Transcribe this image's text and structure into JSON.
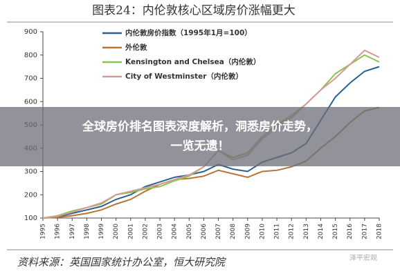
{
  "chart_data": {
    "type": "line",
    "title": "图表24：内伦敦核心区域房价涨幅更大",
    "x": [
      1995,
      1996,
      1997,
      1998,
      1999,
      2000,
      2001,
      2002,
      2003,
      2004,
      2005,
      2006,
      2007,
      2008,
      2009,
      2010,
      2011,
      2012,
      2013,
      2014,
      2015,
      2016,
      2017,
      2018
    ],
    "xlim": [
      1995,
      2018
    ],
    "xticks": [
      1995,
      1996,
      1997,
      1998,
      1999,
      2000,
      2001,
      2002,
      2003,
      2004,
      2005,
      2006,
      2007,
      2008,
      2009,
      2010,
      2011,
      2012,
      2013,
      2014,
      2015,
      2016,
      2017,
      2018
    ],
    "ylim": [
      100,
      900
    ],
    "yticks": [
      100,
      200,
      300,
      400,
      500,
      600,
      700,
      800,
      900
    ],
    "series": [
      {
        "name": "内伦敦房价指数（1995年1月=100）",
        "color": "#2b5f8f",
        "values": [
          100,
          105,
          120,
          135,
          150,
          180,
          200,
          235,
          255,
          275,
          285,
          300,
          330,
          310,
          300,
          340,
          360,
          380,
          420,
          520,
          620,
          680,
          730,
          750
        ]
      },
      {
        "name": "外伦敦",
        "color": "#b87333",
        "values": [
          100,
          103,
          110,
          120,
          135,
          160,
          180,
          215,
          245,
          265,
          270,
          280,
          305,
          290,
          275,
          300,
          305,
          320,
          345,
          400,
          450,
          510,
          560,
          575
        ]
      },
      {
        "name": "Kensington and Chelsea（内伦敦）",
        "color": "#8bc34a",
        "values": [
          100,
          110,
          130,
          145,
          160,
          200,
          210,
          225,
          235,
          260,
          280,
          320,
          390,
          360,
          380,
          450,
          500,
          540,
          590,
          650,
          720,
          760,
          800,
          770
        ]
      },
      {
        "name": "City of Westminster（内伦敦）",
        "color": "#d49a9a",
        "values": [
          100,
          108,
          125,
          145,
          165,
          200,
          215,
          230,
          245,
          265,
          285,
          320,
          390,
          350,
          370,
          440,
          490,
          530,
          590,
          650,
          700,
          760,
          820,
          790
        ]
      }
    ],
    "source": "资料来源：英国国家统计办公室，恒大研究院",
    "watermark": "泽平宏观",
    "banner": [
      "全球房价排名图表深度解析，洞悉房价走势，",
      "一览无遗！"
    ]
  }
}
